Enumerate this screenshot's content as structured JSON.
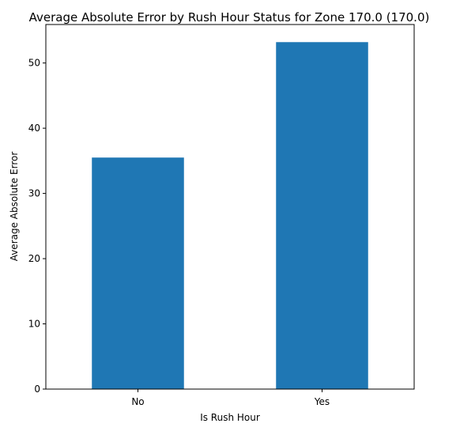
{
  "chart_data": {
    "type": "bar",
    "title": "Average Absolute Error by Rush Hour Status for Zone 170.0 (170.0)",
    "xlabel": "Is Rush Hour",
    "ylabel": "Average Absolute Error",
    "categories": [
      "No",
      "Yes"
    ],
    "values": [
      35.5,
      53.2
    ],
    "ylim": [
      0,
      55.9
    ],
    "yticks": [
      0,
      10,
      20,
      30,
      40,
      50
    ],
    "grid": false,
    "bar_color": "#1f77b4"
  }
}
